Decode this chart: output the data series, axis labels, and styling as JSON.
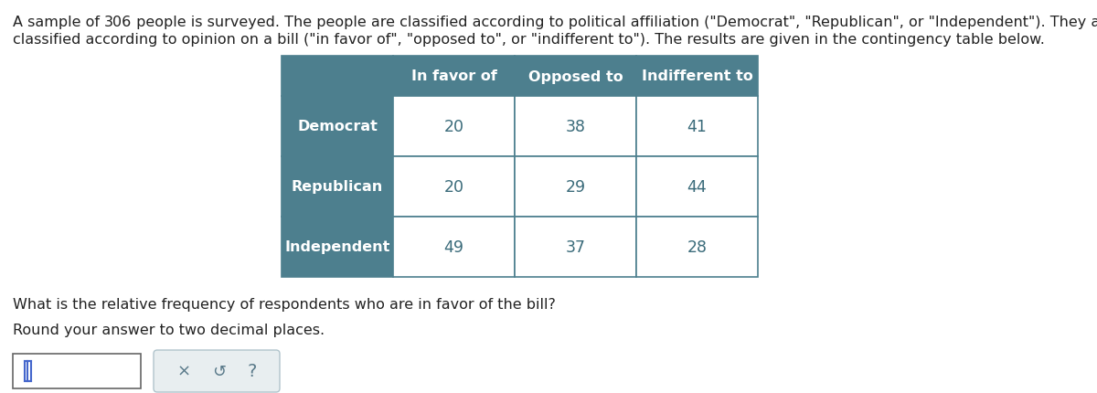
{
  "line1_prefix": "A sample of ",
  "line1_number": "306",
  "line1_suffix": " people is surveyed. The people are classified according to political affiliation (\"Democrat\", \"Republican\", or \"Independent\"). They are also",
  "line2": "classified according to opinion on a bill (\"in favor of\", \"opposed to\", or \"indifferent to\"). The results are given in the contingency table below.",
  "col_headers": [
    "In favor of",
    "Opposed to",
    "Indifferent to"
  ],
  "row_headers": [
    "Democrat",
    "Republican",
    "Independent"
  ],
  "table_data": [
    [
      20,
      38,
      41
    ],
    [
      20,
      29,
      44
    ],
    [
      49,
      37,
      28
    ]
  ],
  "header_bg_color": "#4d7f8e",
  "header_text_color": "#ffffff",
  "cell_bg_color": "#ffffff",
  "cell_text_color": "#3a6b7a",
  "border_color": "#4d7f8e",
  "question_text": "What is the relative frequency of respondents who are in favor of the bill?",
  "round_text": "Round your answer to two decimal places.",
  "bg_color": "#ffffff",
  "text_color": "#222222",
  "font_size_body": 11.5,
  "font_size_table_header": 11.5,
  "font_size_table_cell": 12.5
}
